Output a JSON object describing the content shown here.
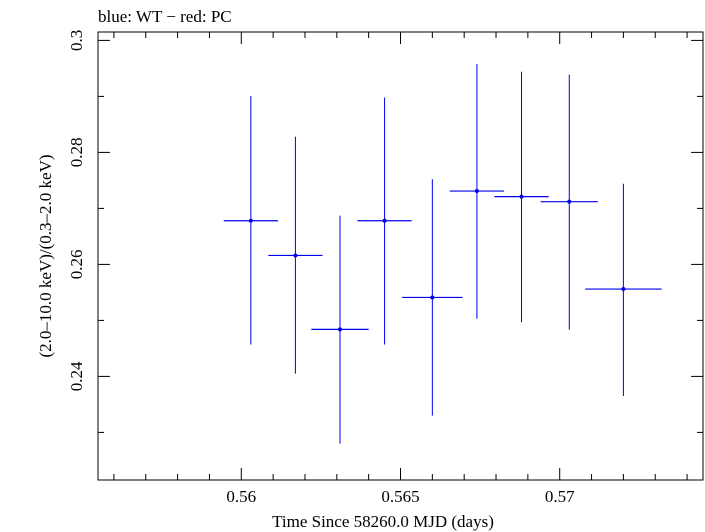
{
  "chart_data": {
    "type": "scatter",
    "title": "blue: WT − red: PC",
    "xlabel": "Time Since 58260.0 MJD (days)",
    "ylabel": "(2.0–10.0 keV)/(0.3–2.0 keV)",
    "xlim": [
      0.5555,
      0.5745
    ],
    "ylim": [
      0.2215,
      0.3015
    ],
    "x_ticks": [
      0.56,
      0.565,
      0.57
    ],
    "x_tick_labels": [
      "0.56",
      "0.565",
      "0.57"
    ],
    "y_ticks": [
      0.24,
      0.26,
      0.28,
      0.3
    ],
    "y_tick_labels": [
      "0.24",
      "0.26",
      "0.28",
      "0.3"
    ],
    "x_minor_step": 0.001,
    "y_minor_step": 0.01,
    "grid": false,
    "series": [
      {
        "color": "#0000ee",
        "points": [
          {
            "x": 0.5603,
            "xerr": 0.00085,
            "y": 0.2678,
            "ylo": 0.2457,
            "yhi": 0.2901
          },
          {
            "x": 0.5617,
            "xerr": 0.00085,
            "y": 0.2616,
            "ylo": 0.2405,
            "yhi": 0.2828
          },
          {
            "x": 0.5631,
            "xerr": 0.0009,
            "y": 0.2484,
            "ylo": 0.228,
            "yhi": 0.2687
          },
          {
            "x": 0.5645,
            "xerr": 0.00085,
            "y": 0.2678,
            "ylo": 0.2457,
            "yhi": 0.2898
          },
          {
            "x": 0.566,
            "xerr": 0.00095,
            "y": 0.2541,
            "ylo": 0.233,
            "yhi": 0.2752
          },
          {
            "x": 0.5674,
            "xerr": 0.00085,
            "y": 0.2731,
            "ylo": 0.2503,
            "yhi": 0.2958
          },
          {
            "x": 0.5688,
            "xerr": 0.00085,
            "y": 0.2721,
            "ylo": 0.2497,
            "yhi": 0.2944
          },
          {
            "x": 0.5703,
            "xerr": 0.0009,
            "y": 0.2712,
            "ylo": 0.2483,
            "yhi": 0.2939
          },
          {
            "x": 0.572,
            "xerr": 0.0012,
            "y": 0.2556,
            "ylo": 0.2365,
            "yhi": 0.2744
          }
        ]
      }
    ]
  }
}
